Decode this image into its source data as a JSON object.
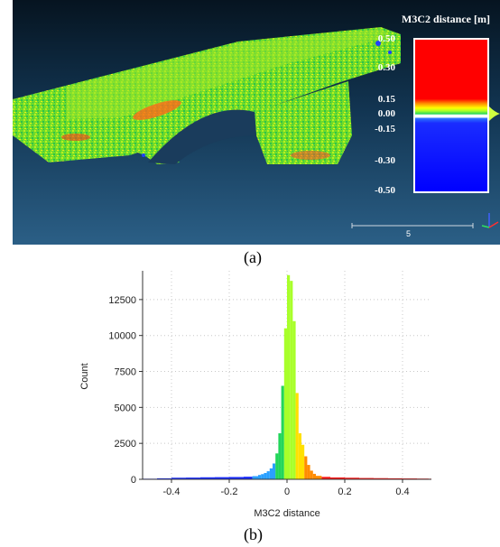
{
  "viewer": {
    "scalar_field_title": "M3C2 distance [m]",
    "scale_ticks": [
      {
        "value": 0.5,
        "label": "0.50"
      },
      {
        "value": 0.3,
        "label": "0.30"
      },
      {
        "value": 0.15,
        "label": "0.15"
      },
      {
        "value": 0.0,
        "label": "0.00"
      },
      {
        "value": -0.15,
        "label": "-0.15"
      },
      {
        "value": -0.3,
        "label": "-0.30"
      },
      {
        "value": -0.5,
        "label": "-0.50"
      }
    ],
    "scale_bar_label": "5",
    "colors": {
      "background_top": "#061420",
      "background_bottom": "#2b5f86",
      "cloud": "#6fdc2a"
    }
  },
  "captions": {
    "a": "(a)",
    "b": "(b)"
  },
  "chart_data": {
    "type": "bar",
    "xlabel": "M3C2 distance",
    "ylabel": "Count",
    "xlim": [
      -0.5,
      0.5
    ],
    "ylim": [
      0,
      14500
    ],
    "xticks": [
      -0.4,
      -0.2,
      0,
      0.2,
      0.4
    ],
    "xtick_labels": [
      "-0.4",
      "-0.2",
      "0",
      "0.2",
      "0.4"
    ],
    "yticks": [
      0,
      2500,
      5000,
      7500,
      10000,
      12500
    ],
    "ytick_labels": [
      "0",
      "2500",
      "5000",
      "7500",
      "10000",
      "12500"
    ],
    "grid": true,
    "bin_width": 0.01,
    "bins": [
      {
        "x": -0.5,
        "count": 40
      },
      {
        "x": -0.45,
        "count": 70
      },
      {
        "x": -0.4,
        "count": 110
      },
      {
        "x": -0.35,
        "count": 120
      },
      {
        "x": -0.3,
        "count": 140
      },
      {
        "x": -0.25,
        "count": 150
      },
      {
        "x": -0.2,
        "count": 160
      },
      {
        "x": -0.15,
        "count": 180
      },
      {
        "x": -0.12,
        "count": 220
      },
      {
        "x": -0.1,
        "count": 300
      },
      {
        "x": -0.09,
        "count": 360
      },
      {
        "x": -0.08,
        "count": 440
      },
      {
        "x": -0.07,
        "count": 560
      },
      {
        "x": -0.06,
        "count": 760
      },
      {
        "x": -0.05,
        "count": 1100
      },
      {
        "x": -0.04,
        "count": 1800
      },
      {
        "x": -0.03,
        "count": 3200
      },
      {
        "x": -0.02,
        "count": 6500
      },
      {
        "x": -0.01,
        "count": 10500
      },
      {
        "x": 0.0,
        "count": 14200
      },
      {
        "x": 0.01,
        "count": 13800
      },
      {
        "x": 0.02,
        "count": 11000
      },
      {
        "x": 0.03,
        "count": 6000
      },
      {
        "x": 0.04,
        "count": 3200
      },
      {
        "x": 0.05,
        "count": 2400
      },
      {
        "x": 0.06,
        "count": 1600
      },
      {
        "x": 0.07,
        "count": 1000
      },
      {
        "x": 0.08,
        "count": 600
      },
      {
        "x": 0.09,
        "count": 380
      },
      {
        "x": 0.1,
        "count": 240
      },
      {
        "x": 0.12,
        "count": 170
      },
      {
        "x": 0.15,
        "count": 130
      },
      {
        "x": 0.2,
        "count": 110
      },
      {
        "x": 0.25,
        "count": 90
      },
      {
        "x": 0.3,
        "count": 80
      },
      {
        "x": 0.35,
        "count": 70
      },
      {
        "x": 0.4,
        "count": 60
      },
      {
        "x": 0.45,
        "count": 50
      },
      {
        "x": 0.49,
        "count": 40
      }
    ]
  }
}
